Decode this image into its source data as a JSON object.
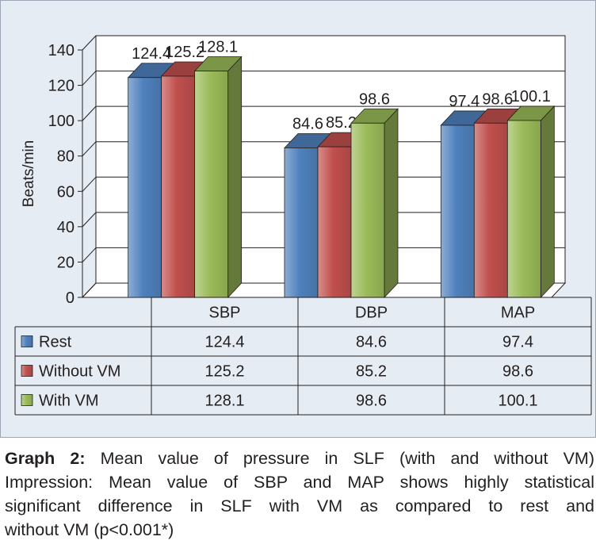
{
  "chart_data": {
    "type": "bar",
    "ylabel": "Beats/min",
    "ylim": [
      0,
      140
    ],
    "yticks": [
      0,
      20,
      40,
      60,
      80,
      100,
      120,
      140
    ],
    "categories": [
      "SBP",
      "DBP",
      "MAP"
    ],
    "series": [
      {
        "name": "Rest",
        "values": [
          124.4,
          84.6,
          97.4
        ],
        "labels": [
          "124.4",
          "84.6",
          "97.4"
        ],
        "color": "#4f81bd"
      },
      {
        "name": "Without VM",
        "values": [
          125.2,
          85.2,
          98.6
        ],
        "labels": [
          "125.2",
          "85.2",
          "98.6"
        ],
        "color": "#c0504d"
      },
      {
        "name": "With VM",
        "values": [
          128.1,
          98.6,
          100.1
        ],
        "labels": [
          "128.1",
          "98.6",
          "100.1"
        ],
        "color": "#9bbb59"
      }
    ],
    "grid": true,
    "data_table": true
  },
  "caption": {
    "label": "Graph 2:",
    "title": "Mean value of pressure in SLF (with and without VM)",
    "line2": "Impression: Mean value of SBP and MAP shows highly statistical",
    "line3": "significant difference in SLF with VM as compared to rest and",
    "line4": "without VM (p<0.001*)"
  }
}
